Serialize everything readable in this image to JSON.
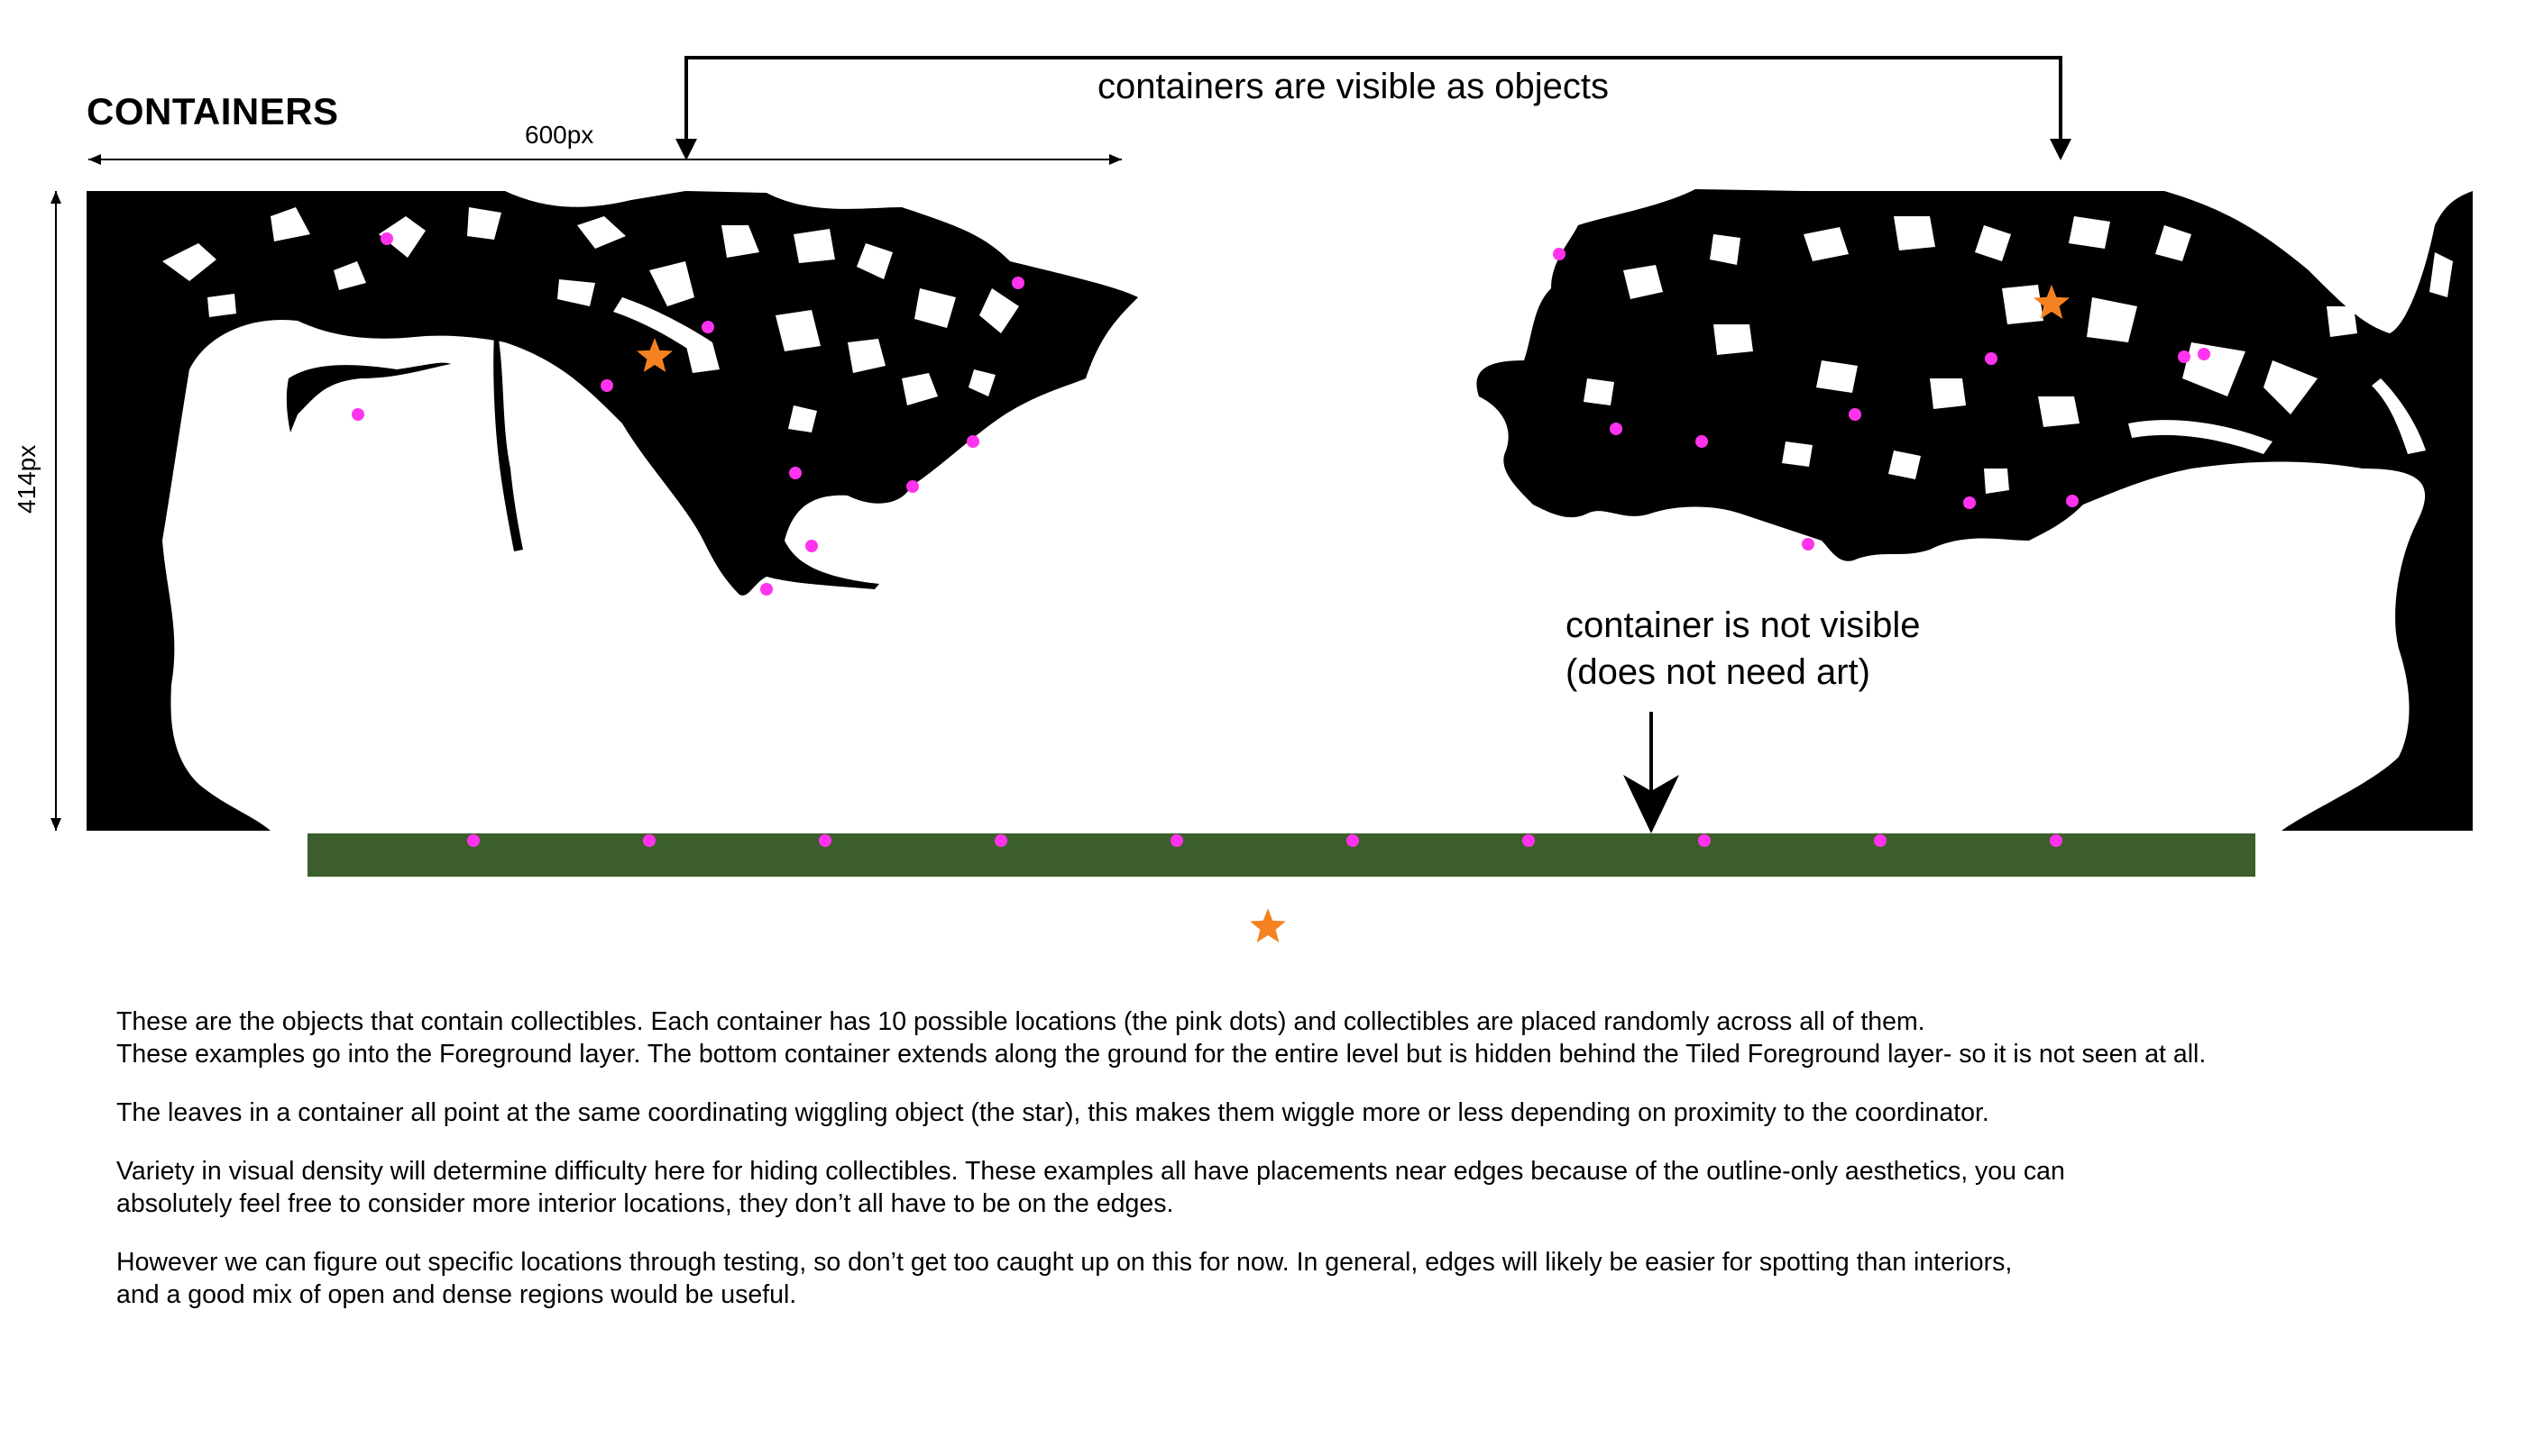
{
  "title": "CONTAINERS",
  "dimensions": {
    "width_label": "600px",
    "height_label": "414px"
  },
  "callouts": {
    "visible": "containers are visible as objects",
    "not_visible_line1": "container is not visible",
    "not_visible_line2": "(does not need art)"
  },
  "colors": {
    "silhouette": "#000000",
    "collectible_dot": "#ff33ee",
    "coordinator_star": "#f58220",
    "ground_container": "#3c5e2c"
  },
  "icons": {
    "collectible": "pink-dot",
    "coordinator": "orange-star"
  },
  "notes": {
    "p1_line1": "These are the objects that contain collectibles.  Each container has 10 possible locations (the pink dots) and collectibles are placed randomly across all of them.",
    "p1_line2": "These examples go into the Foreground layer.  The bottom container extends along the ground for the entire level but is hidden behind the Tiled Foreground layer- so it is not seen at all.",
    "p2": "The leaves in a container all point at the same coordinating wiggling object (the star), this makes them wiggle more or less depending on proximity to the coordinator.",
    "p3_line1": "Variety in visual density will determine difficulty here for hiding collectibles.  These examples all have placements near edges because of the outline-only aesthetics, you can",
    "p3_line2": "absolutely feel free to consider more interior locations, they don’t all have to be on the edges.",
    "p4_line1": "However we can figure out specific locations through testing, so don’t get too caught up on this for now.  In general, edges will likely be easier for spotting than interiors,",
    "p4_line2": "and a good mix of open and dense regions would be useful."
  }
}
